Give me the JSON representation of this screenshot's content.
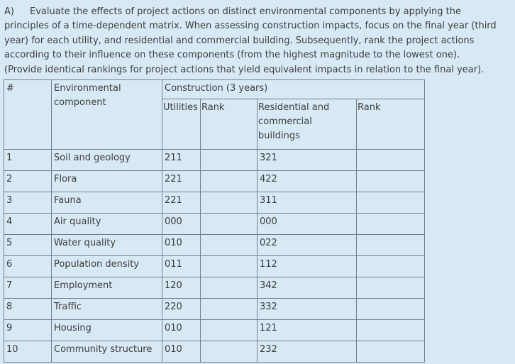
{
  "page": {
    "background_color": "#d7e9f5",
    "text_color": "#3d3d3d",
    "border_color": "#767f88"
  },
  "question": {
    "label": "A)",
    "text": "Evaluate the effects of project actions on distinct environmental components by applying the principles of a time-dependent matrix. When assessing construction impacts, focus on the final year (third year) for each utility, and residential and commercial building. Subsequently, rank the project actions according to their influence on these components (from the highest magnitude to the lowest one). (Provide identical rankings for project actions that yield equivalent impacts in relation to the final year)."
  },
  "table": {
    "headers": {
      "num": "#",
      "component": "Environmental component",
      "construction": "Construction (3 years)",
      "utilities": "Utilities",
      "utilities_rank": "Rank",
      "residential": "Residential and commercial buildings",
      "residential_rank": "Rank"
    },
    "rows": [
      {
        "num": "1",
        "component": "Soil and geology",
        "utilities": "211",
        "utilities_rank": "",
        "residential": "321",
        "residential_rank": ""
      },
      {
        "num": "2",
        "component": "Flora",
        "utilities": "221",
        "utilities_rank": "",
        "residential": "422",
        "residential_rank": ""
      },
      {
        "num": "3",
        "component": "Fauna",
        "utilities": "221",
        "utilities_rank": "",
        "residential": "311",
        "residential_rank": ""
      },
      {
        "num": "4",
        "component": "Air quality",
        "utilities": "000",
        "utilities_rank": "",
        "residential": "000",
        "residential_rank": ""
      },
      {
        "num": "5",
        "component": "Water quality",
        "utilities": "010",
        "utilities_rank": "",
        "residential": "022",
        "residential_rank": ""
      },
      {
        "num": "6",
        "component": "Population density",
        "utilities": "011",
        "utilities_rank": "",
        "residential": "112",
        "residential_rank": ""
      },
      {
        "num": "7",
        "component": "Employment",
        "utilities": "120",
        "utilities_rank": "",
        "residential": "342",
        "residential_rank": ""
      },
      {
        "num": "8",
        "component": "Traffic",
        "utilities": "220",
        "utilities_rank": "",
        "residential": "332",
        "residential_rank": ""
      },
      {
        "num": "9",
        "component": "Housing",
        "utilities": "010",
        "utilities_rank": "",
        "residential": "121",
        "residential_rank": ""
      },
      {
        "num": "10",
        "component": "Community structure",
        "utilities": "010",
        "utilities_rank": "",
        "residential": "232",
        "residential_rank": ""
      }
    ]
  }
}
